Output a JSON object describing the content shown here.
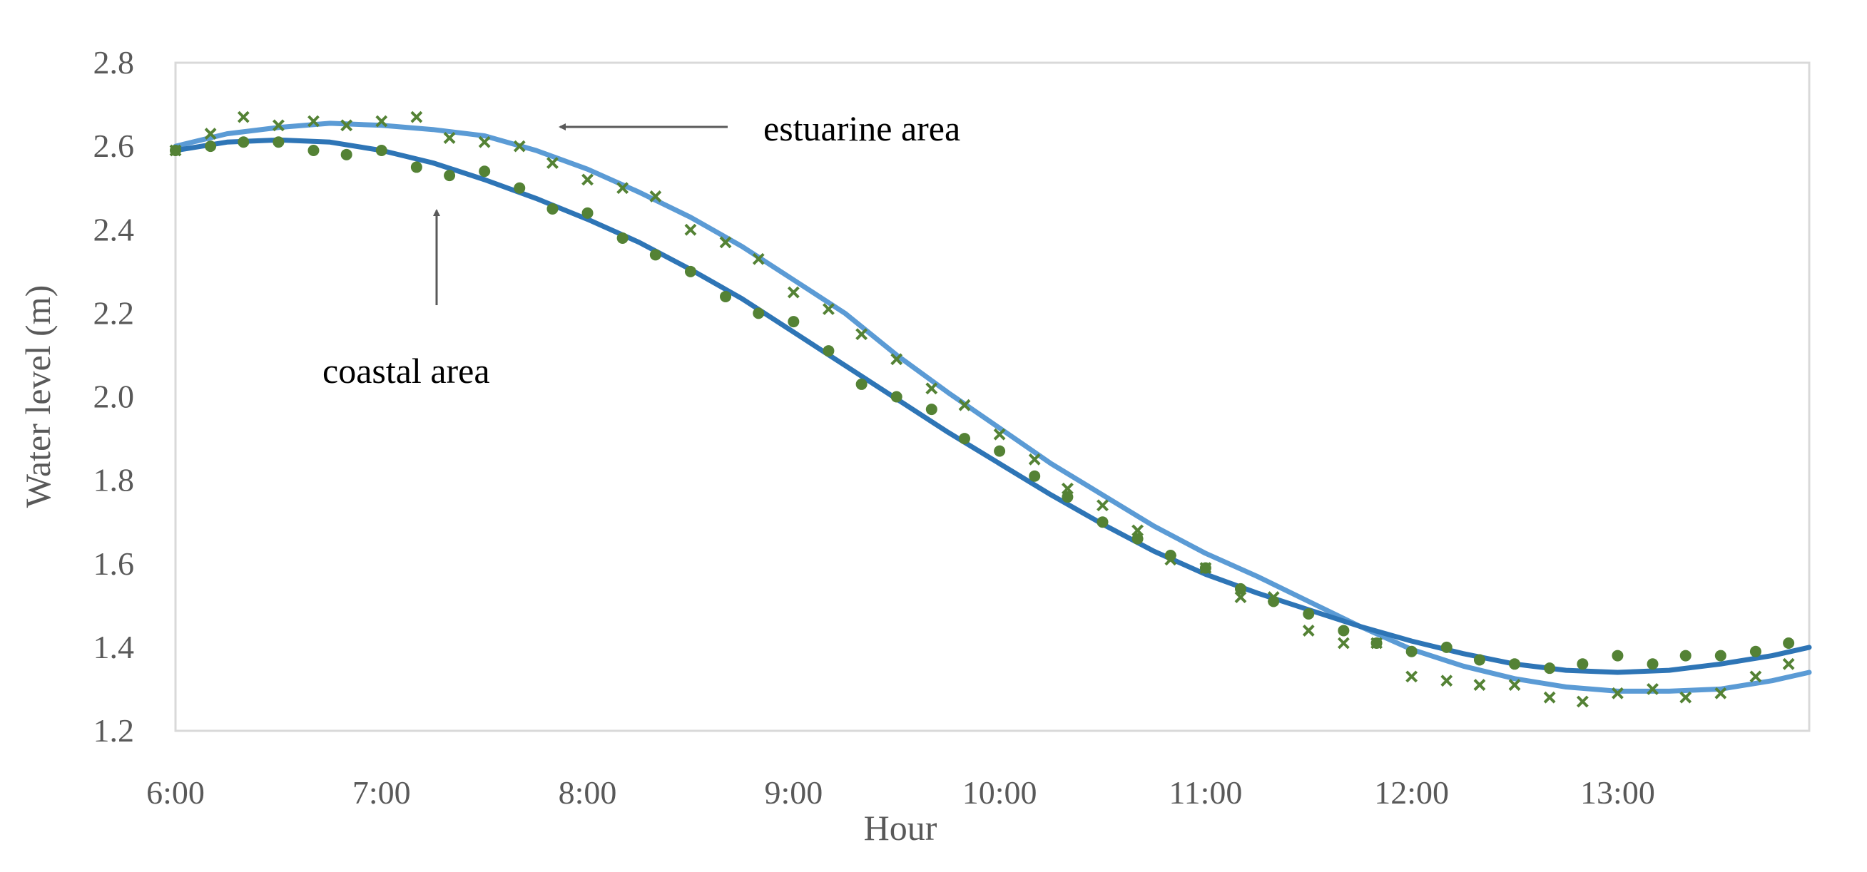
{
  "chart_data": {
    "type": "line",
    "title": "",
    "xlabel": "Hour",
    "ylabel": "Water level (m)",
    "x_tick_labels": [
      "6:00",
      "7:00",
      "8:00",
      "9:00",
      "10:00",
      "11:00",
      "12:00",
      "13:00"
    ],
    "y_tick_labels": [
      "1.2",
      "1.4",
      "1.6",
      "1.8",
      "2.0",
      "2.2",
      "2.4",
      "2.6",
      "2.8"
    ],
    "xlim": [
      6.0,
      13.93
    ],
    "ylim": [
      1.2,
      2.8
    ],
    "grid": false,
    "legend": "none",
    "annotations": [
      {
        "text": "estuarine area",
        "target_series": "estuarine"
      },
      {
        "text": "coastal area",
        "target_series": "coastal"
      }
    ],
    "series": [
      {
        "key": "estuarine",
        "kind": "line",
        "color": "#5b9bd5",
        "points": [
          [
            6.0,
            2.6
          ],
          [
            6.25,
            2.63
          ],
          [
            6.5,
            2.645
          ],
          [
            6.75,
            2.655
          ],
          [
            7.0,
            2.65
          ],
          [
            7.25,
            2.64
          ],
          [
            7.5,
            2.625
          ],
          [
            7.75,
            2.59
          ],
          [
            8.0,
            2.545
          ],
          [
            8.25,
            2.49
          ],
          [
            8.5,
            2.43
          ],
          [
            8.75,
            2.36
          ],
          [
            9.0,
            2.28
          ],
          [
            9.25,
            2.2
          ],
          [
            9.5,
            2.1
          ],
          [
            9.75,
            2.01
          ],
          [
            10.0,
            1.925
          ],
          [
            10.25,
            1.84
          ],
          [
            10.5,
            1.765
          ],
          [
            10.75,
            1.69
          ],
          [
            11.0,
            1.625
          ],
          [
            11.25,
            1.57
          ],
          [
            11.5,
            1.51
          ],
          [
            11.75,
            1.45
          ],
          [
            12.0,
            1.395
          ],
          [
            12.25,
            1.355
          ],
          [
            12.5,
            1.325
          ],
          [
            12.75,
            1.305
          ],
          [
            13.0,
            1.295
          ],
          [
            13.25,
            1.295
          ],
          [
            13.5,
            1.3
          ],
          [
            13.75,
            1.32
          ],
          [
            13.93,
            1.34
          ]
        ]
      },
      {
        "key": "coastal",
        "kind": "line",
        "color": "#2e75b6",
        "points": [
          [
            6.0,
            2.59
          ],
          [
            6.25,
            2.61
          ],
          [
            6.5,
            2.615
          ],
          [
            6.75,
            2.61
          ],
          [
            7.0,
            2.59
          ],
          [
            7.25,
            2.56
          ],
          [
            7.5,
            2.52
          ],
          [
            7.75,
            2.475
          ],
          [
            8.0,
            2.425
          ],
          [
            8.25,
            2.37
          ],
          [
            8.5,
            2.305
          ],
          [
            8.75,
            2.235
          ],
          [
            9.0,
            2.155
          ],
          [
            9.25,
            2.075
          ],
          [
            9.5,
            1.995
          ],
          [
            9.75,
            1.915
          ],
          [
            10.0,
            1.84
          ],
          [
            10.25,
            1.765
          ],
          [
            10.5,
            1.695
          ],
          [
            10.75,
            1.63
          ],
          [
            11.0,
            1.575
          ],
          [
            11.25,
            1.53
          ],
          [
            11.5,
            1.49
          ],
          [
            11.75,
            1.45
          ],
          [
            12.0,
            1.415
          ],
          [
            12.25,
            1.385
          ],
          [
            12.5,
            1.36
          ],
          [
            12.75,
            1.345
          ],
          [
            13.0,
            1.34
          ],
          [
            13.25,
            1.345
          ],
          [
            13.5,
            1.36
          ],
          [
            13.75,
            1.38
          ],
          [
            13.93,
            1.4
          ]
        ]
      },
      {
        "key": "estuarine-observed",
        "kind": "scatter",
        "marker": "x",
        "color": "#548235",
        "points": [
          [
            6.0,
            2.59
          ],
          [
            6.17,
            2.63
          ],
          [
            6.33,
            2.67
          ],
          [
            6.5,
            2.65
          ],
          [
            6.67,
            2.66
          ],
          [
            6.83,
            2.65
          ],
          [
            7.0,
            2.66
          ],
          [
            7.17,
            2.67
          ],
          [
            7.33,
            2.62
          ],
          [
            7.5,
            2.61
          ],
          [
            7.67,
            2.6
          ],
          [
            7.83,
            2.56
          ],
          [
            8.0,
            2.52
          ],
          [
            8.17,
            2.5
          ],
          [
            8.33,
            2.48
          ],
          [
            8.5,
            2.4
          ],
          [
            8.67,
            2.37
          ],
          [
            8.83,
            2.33
          ],
          [
            9.0,
            2.25
          ],
          [
            9.17,
            2.21
          ],
          [
            9.33,
            2.15
          ],
          [
            9.5,
            2.09
          ],
          [
            9.67,
            2.02
          ],
          [
            9.83,
            1.98
          ],
          [
            10.0,
            1.91
          ],
          [
            10.17,
            1.85
          ],
          [
            10.33,
            1.78
          ],
          [
            10.5,
            1.74
          ],
          [
            10.67,
            1.68
          ],
          [
            10.83,
            1.61
          ],
          [
            11.0,
            1.59
          ],
          [
            11.17,
            1.52
          ],
          [
            11.33,
            1.52
          ],
          [
            11.5,
            1.44
          ],
          [
            11.67,
            1.41
          ],
          [
            11.83,
            1.41
          ],
          [
            12.0,
            1.33
          ],
          [
            12.17,
            1.32
          ],
          [
            12.33,
            1.31
          ],
          [
            12.5,
            1.31
          ],
          [
            12.67,
            1.28
          ],
          [
            12.83,
            1.27
          ],
          [
            13.0,
            1.29
          ],
          [
            13.17,
            1.3
          ],
          [
            13.33,
            1.28
          ],
          [
            13.5,
            1.29
          ],
          [
            13.67,
            1.33
          ],
          [
            13.83,
            1.36
          ]
        ]
      },
      {
        "key": "coastal-observed",
        "kind": "scatter",
        "marker": "dot",
        "color": "#548235",
        "points": [
          [
            6.0,
            2.59
          ],
          [
            6.17,
            2.6
          ],
          [
            6.33,
            2.61
          ],
          [
            6.5,
            2.61
          ],
          [
            6.67,
            2.59
          ],
          [
            6.83,
            2.58
          ],
          [
            7.0,
            2.59
          ],
          [
            7.17,
            2.55
          ],
          [
            7.33,
            2.53
          ],
          [
            7.5,
            2.54
          ],
          [
            7.67,
            2.5
          ],
          [
            7.83,
            2.45
          ],
          [
            8.0,
            2.44
          ],
          [
            8.17,
            2.38
          ],
          [
            8.33,
            2.34
          ],
          [
            8.5,
            2.3
          ],
          [
            8.67,
            2.24
          ],
          [
            8.83,
            2.2
          ],
          [
            9.0,
            2.18
          ],
          [
            9.17,
            2.11
          ],
          [
            9.33,
            2.03
          ],
          [
            9.5,
            2.0
          ],
          [
            9.67,
            1.97
          ],
          [
            9.83,
            1.9
          ],
          [
            10.0,
            1.87
          ],
          [
            10.17,
            1.81
          ],
          [
            10.33,
            1.76
          ],
          [
            10.5,
            1.7
          ],
          [
            10.67,
            1.66
          ],
          [
            10.83,
            1.62
          ],
          [
            11.0,
            1.59
          ],
          [
            11.17,
            1.54
          ],
          [
            11.33,
            1.51
          ],
          [
            11.5,
            1.48
          ],
          [
            11.67,
            1.44
          ],
          [
            11.83,
            1.41
          ],
          [
            12.0,
            1.39
          ],
          [
            12.17,
            1.4
          ],
          [
            12.33,
            1.37
          ],
          [
            12.5,
            1.36
          ],
          [
            12.67,
            1.35
          ],
          [
            12.83,
            1.36
          ],
          [
            13.0,
            1.38
          ],
          [
            13.17,
            1.36
          ],
          [
            13.33,
            1.38
          ],
          [
            13.5,
            1.38
          ],
          [
            13.67,
            1.39
          ],
          [
            13.83,
            1.41
          ]
        ]
      }
    ]
  }
}
